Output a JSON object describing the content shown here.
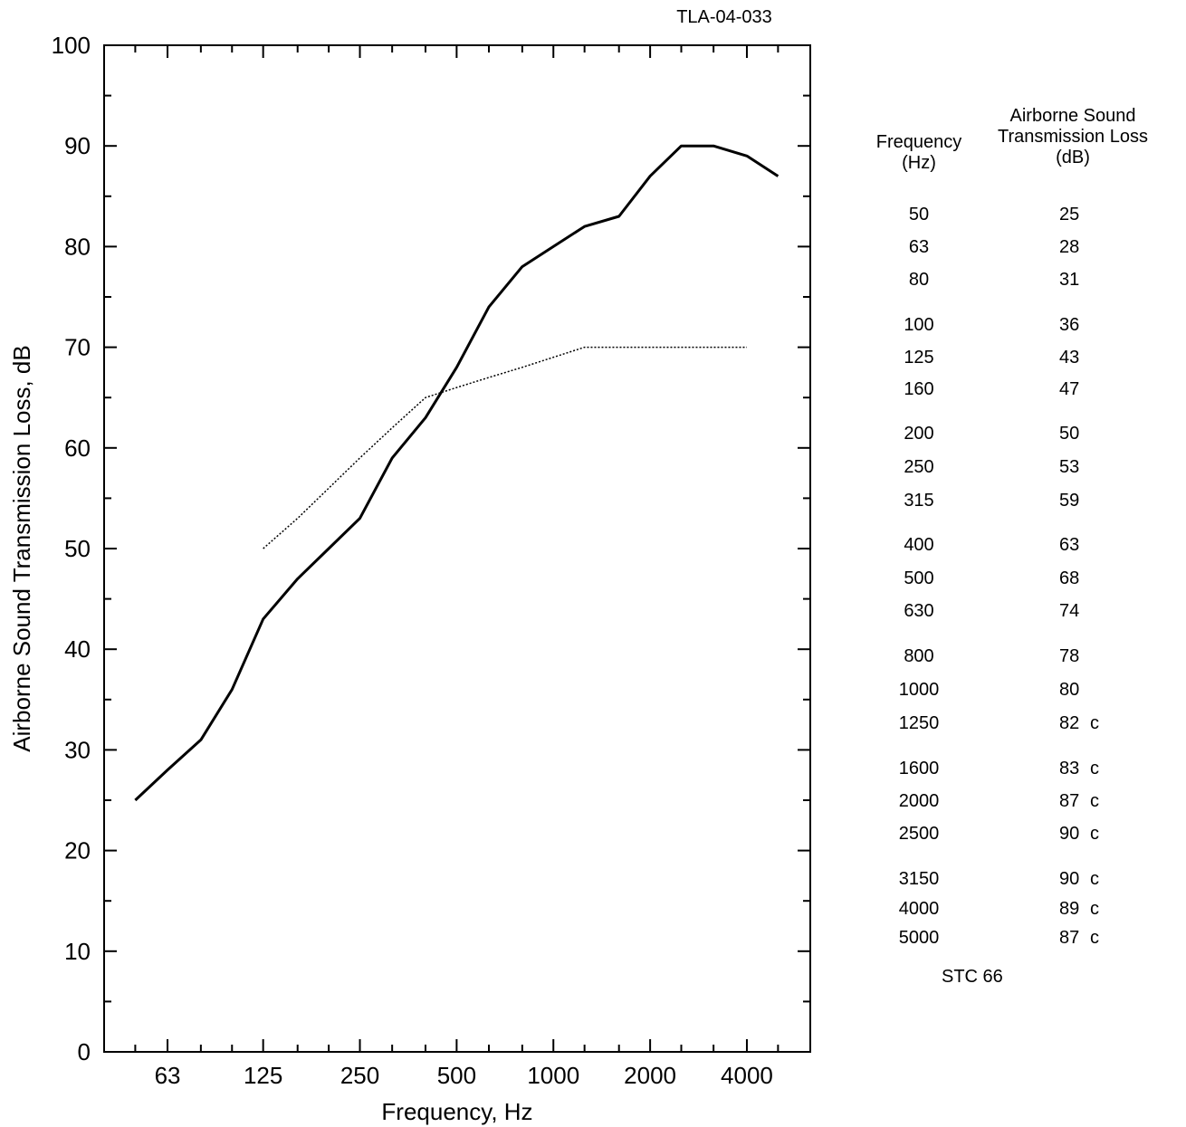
{
  "document_id": "TLA-04-033",
  "table": {
    "header_frequency": [
      "Frequency",
      "(Hz)"
    ],
    "header_loss": [
      "Airborne Sound",
      "Transmission Loss",
      "(dB)"
    ],
    "rows": [
      {
        "f": "50",
        "tl": "25",
        "flag": ""
      },
      {
        "f": "63",
        "tl": "28",
        "flag": ""
      },
      {
        "f": "80",
        "tl": "31",
        "flag": ""
      },
      {
        "f": "100",
        "tl": "36",
        "flag": ""
      },
      {
        "f": "125",
        "tl": "43",
        "flag": ""
      },
      {
        "f": "160",
        "tl": "47",
        "flag": ""
      },
      {
        "f": "200",
        "tl": "50",
        "flag": ""
      },
      {
        "f": "250",
        "tl": "53",
        "flag": ""
      },
      {
        "f": "315",
        "tl": "59",
        "flag": ""
      },
      {
        "f": "400",
        "tl": "63",
        "flag": ""
      },
      {
        "f": "500",
        "tl": "68",
        "flag": ""
      },
      {
        "f": "630",
        "tl": "74",
        "flag": ""
      },
      {
        "f": "800",
        "tl": "78",
        "flag": ""
      },
      {
        "f": "1000",
        "tl": "80",
        "flag": ""
      },
      {
        "f": "1250",
        "tl": "82",
        "flag": "c"
      },
      {
        "f": "1600",
        "tl": "83",
        "flag": "c"
      },
      {
        "f": "2000",
        "tl": "87",
        "flag": "c"
      },
      {
        "f": "2500",
        "tl": "90",
        "flag": "c"
      },
      {
        "f": "3150",
        "tl": "90",
        "flag": "c"
      },
      {
        "f": "4000",
        "tl": "89",
        "flag": "c"
      },
      {
        "f": "5000",
        "tl": "87",
        "flag": "c"
      }
    ],
    "stc_label": "STC 66"
  },
  "chart_data": {
    "type": "line",
    "title": "",
    "xlabel": "Frequency, Hz",
    "ylabel": "Airborne Sound Transmission Loss, dB",
    "x_scale": "log",
    "xlim": [
      40,
      6300
    ],
    "ylim": [
      0,
      100
    ],
    "x_tick_labels": [
      "63",
      "125",
      "250",
      "500",
      "1000",
      "2000",
      "4000"
    ],
    "y_tick_labels": [
      "0",
      "10",
      "20",
      "30",
      "40",
      "50",
      "60",
      "70",
      "80",
      "90",
      "100"
    ],
    "grid": false,
    "series": [
      {
        "style": "solid",
        "x": [
          50,
          63,
          80,
          100,
          125,
          160,
          200,
          250,
          315,
          400,
          500,
          630,
          800,
          1000,
          1250,
          1600,
          2000,
          2500,
          3150,
          4000,
          5000
        ],
        "y": [
          25,
          28,
          31,
          36,
          43,
          47,
          50,
          53,
          59,
          63,
          68,
          74,
          78,
          80,
          82,
          83,
          87,
          90,
          90,
          89,
          87
        ]
      },
      {
        "style": "dotted",
        "x": [
          125,
          160,
          200,
          250,
          315,
          400,
          500,
          630,
          800,
          1000,
          1250,
          1600,
          2000,
          2500,
          3150,
          4000
        ],
        "y": [
          50,
          53,
          56,
          59,
          62,
          65,
          66,
          67,
          68,
          69,
          70,
          70,
          70,
          70,
          70,
          70
        ]
      }
    ]
  }
}
